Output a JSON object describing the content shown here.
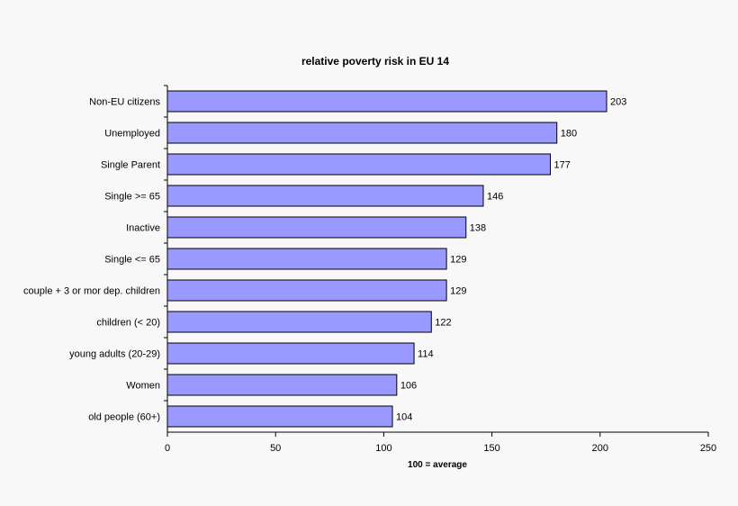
{
  "chart_data": {
    "type": "bar",
    "orientation": "horizontal",
    "title": "relative poverty risk in EU 14",
    "xlabel": "100 = average",
    "ylabel": "",
    "xlim": [
      0,
      250
    ],
    "xticks": [
      0,
      50,
      100,
      150,
      200,
      250
    ],
    "grid": false,
    "categories": [
      "Non-EU citizens",
      "Unemployed",
      "Single Parent",
      "Single >= 65",
      "Inactive",
      "Single <= 65",
      "couple + 3 or mor dep. children",
      "children (< 20)",
      "young adults (20-29)",
      "Women",
      "old people (60+)"
    ],
    "values": [
      203,
      180,
      177,
      146,
      138,
      129,
      129,
      122,
      114,
      106,
      104
    ],
    "bar_color": "#9999ff"
  }
}
